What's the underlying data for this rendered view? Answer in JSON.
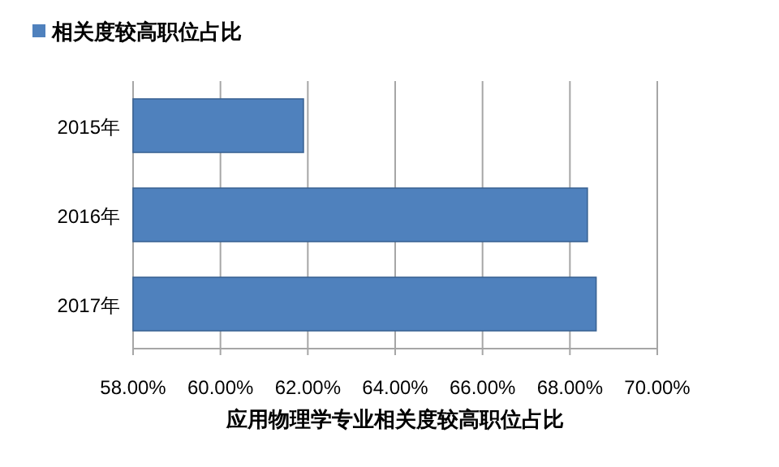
{
  "chart_data": {
    "type": "bar",
    "orientation": "horizontal",
    "xlabel": "应用物理学专业相关度较高职位占比",
    "categories": [
      "2015年",
      "2016年",
      "2017年"
    ],
    "series": [
      {
        "name": "相关度较高职位占比",
        "color": "#4f81bd",
        "values": [
          61.9,
          68.4,
          68.6
        ]
      }
    ],
    "xlim": [
      58,
      70
    ],
    "xticks": [
      {
        "value": 58,
        "label": "58.00%"
      },
      {
        "value": 60,
        "label": "60.00%"
      },
      {
        "value": 62,
        "label": "62.00%"
      },
      {
        "value": 64,
        "label": "64.00%"
      },
      {
        "value": 66,
        "label": "66.00%"
      },
      {
        "value": 68,
        "label": "68.00%"
      },
      {
        "value": 70,
        "label": "70.00%"
      }
    ],
    "grid": "x",
    "legend": "top left"
  }
}
